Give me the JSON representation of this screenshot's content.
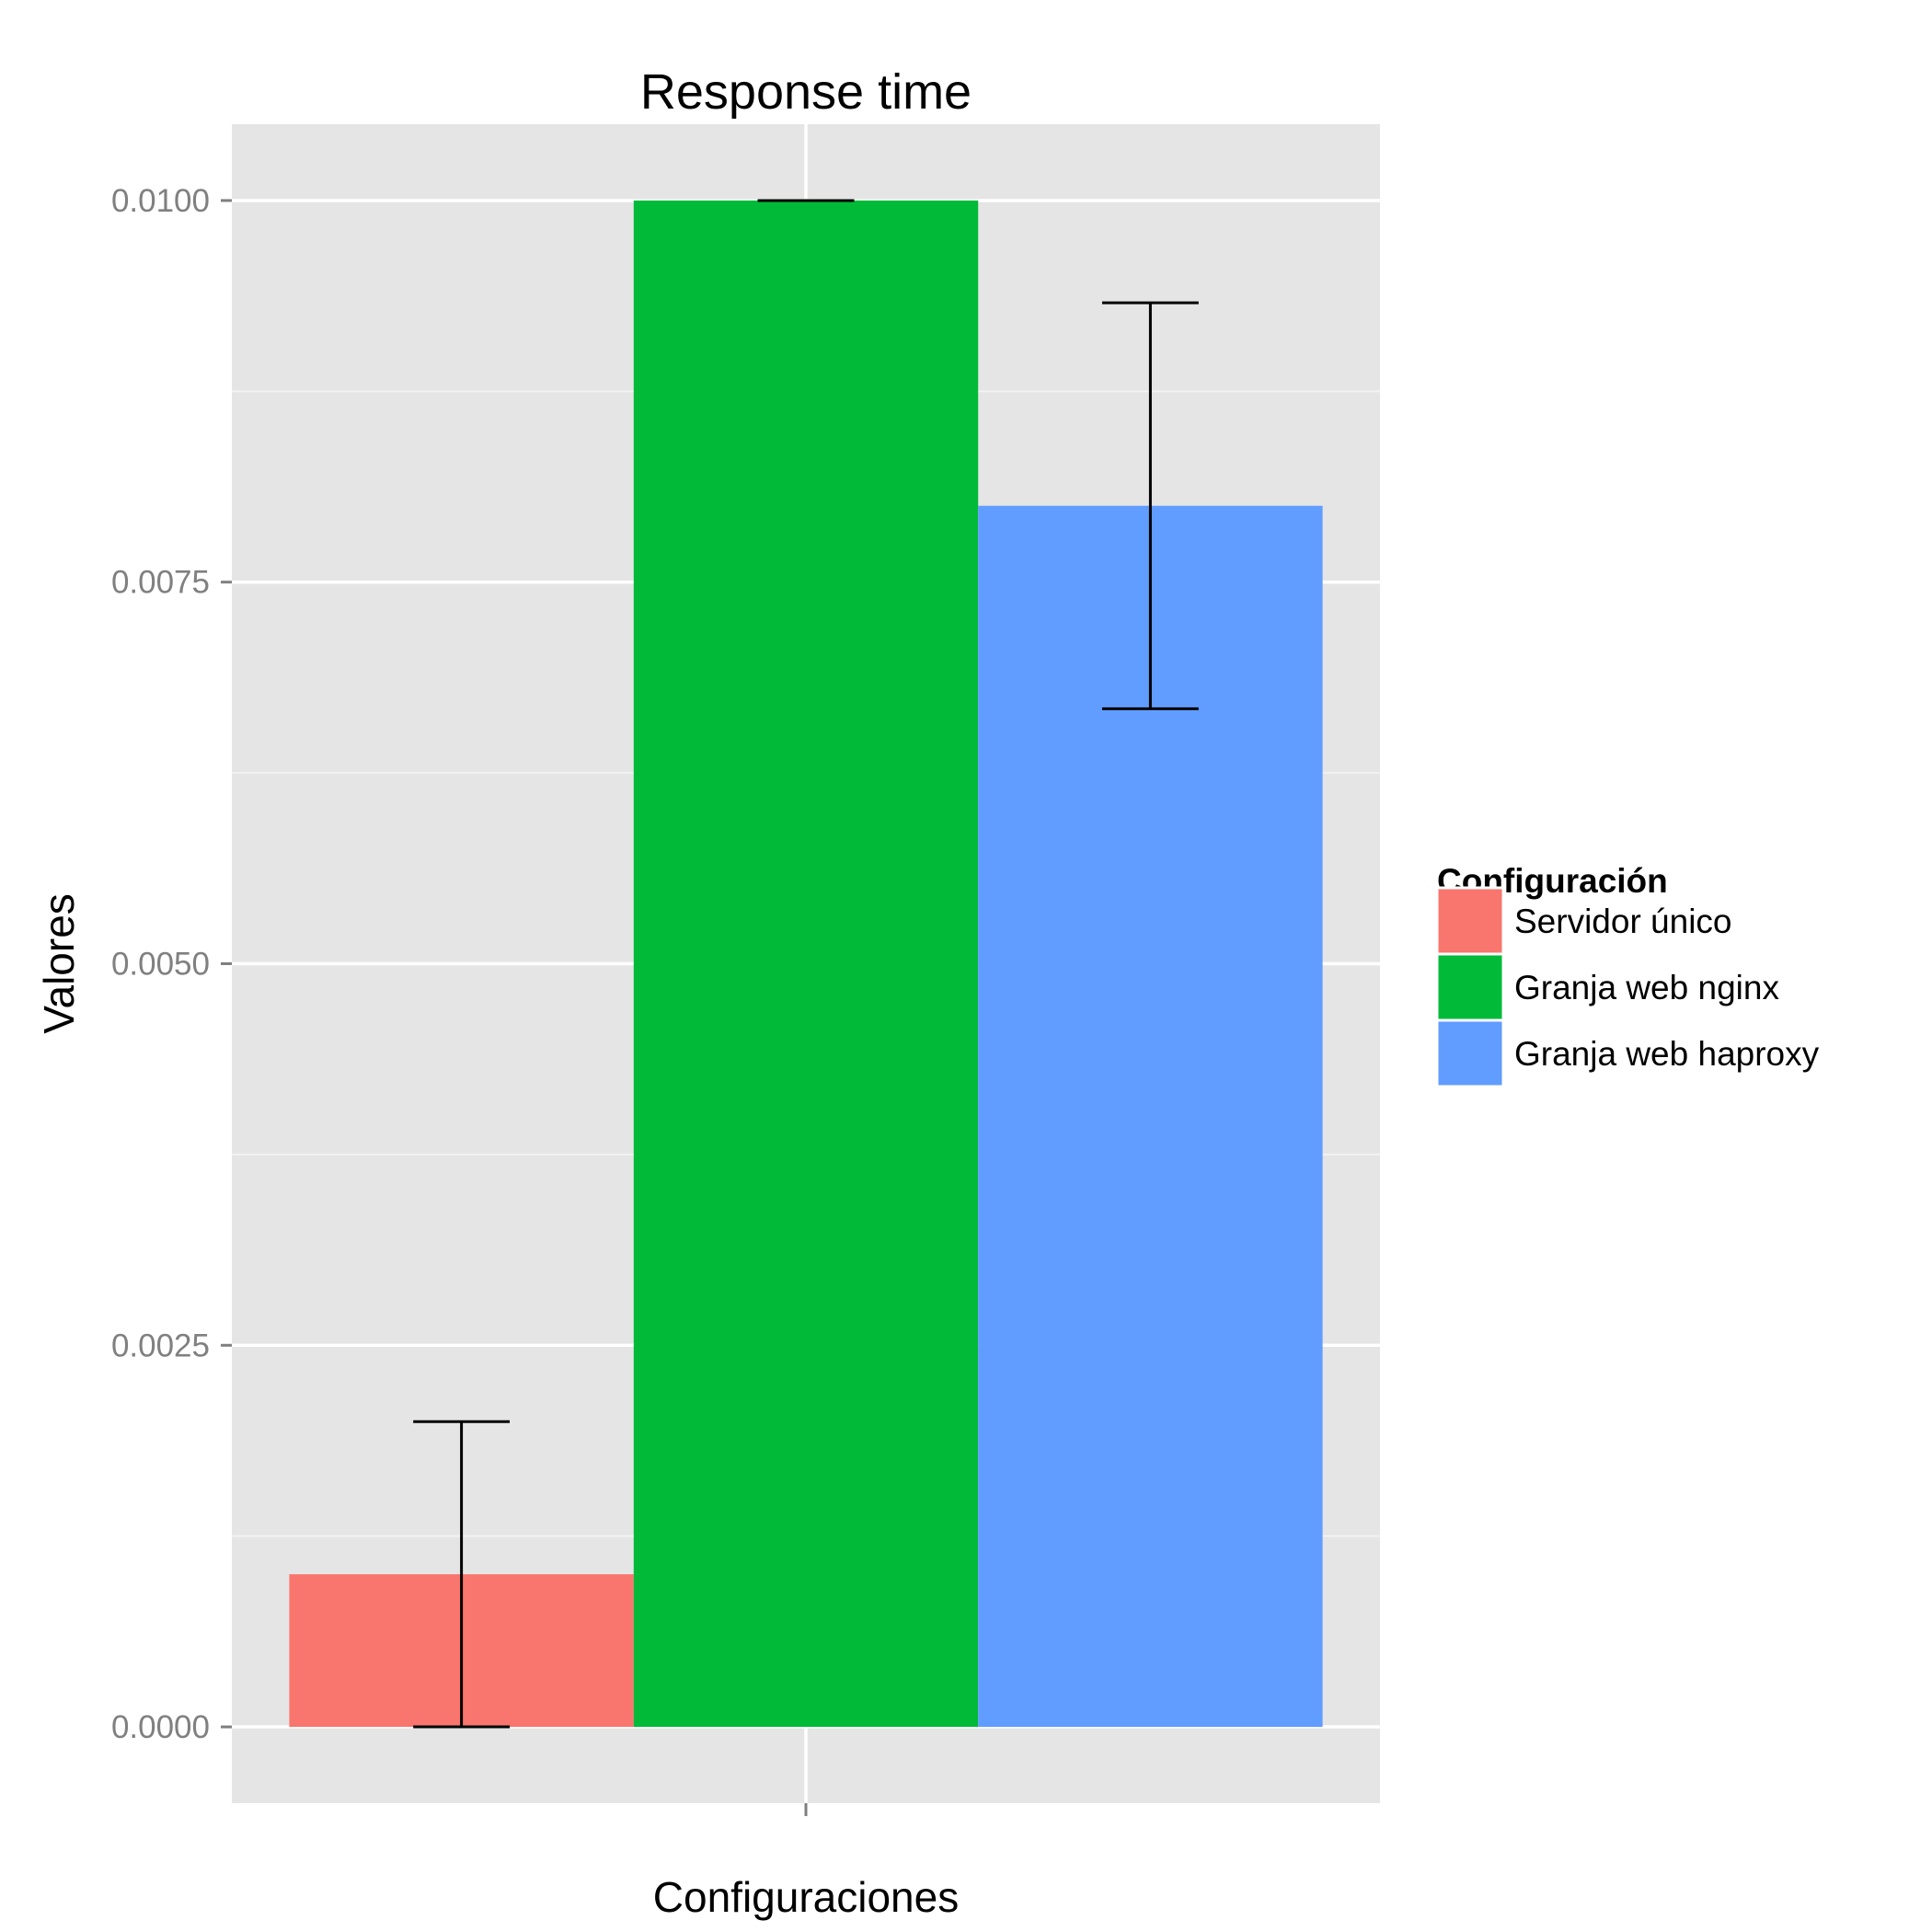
{
  "chart_data": {
    "type": "bar",
    "title": "Response time",
    "xlabel": "Configuraciones",
    "ylabel": "Valores",
    "ylim": [
      -0.0005,
      0.0105
    ],
    "yticks": [
      0.0,
      0.0025,
      0.005,
      0.0075,
      0.01
    ],
    "ytick_labels": [
      "0.0000",
      "0.0025",
      "0.0050",
      "0.0075",
      "0.0100"
    ],
    "grid": true,
    "legend": {
      "title": "Configuración",
      "position": "right"
    },
    "series": [
      {
        "name": "Servidor único",
        "value": 0.001,
        "error_low": 0.0,
        "error_high": 0.002,
        "color": "#F8766D"
      },
      {
        "name": "Granja web nginx",
        "value": 0.01,
        "error_low": 0.01,
        "error_high": 0.01,
        "color": "#00BA38"
      },
      {
        "name": "Granja web haproxy",
        "value": 0.008,
        "error_low": 0.00667,
        "error_high": 0.00933,
        "color": "#619CFF"
      }
    ]
  }
}
